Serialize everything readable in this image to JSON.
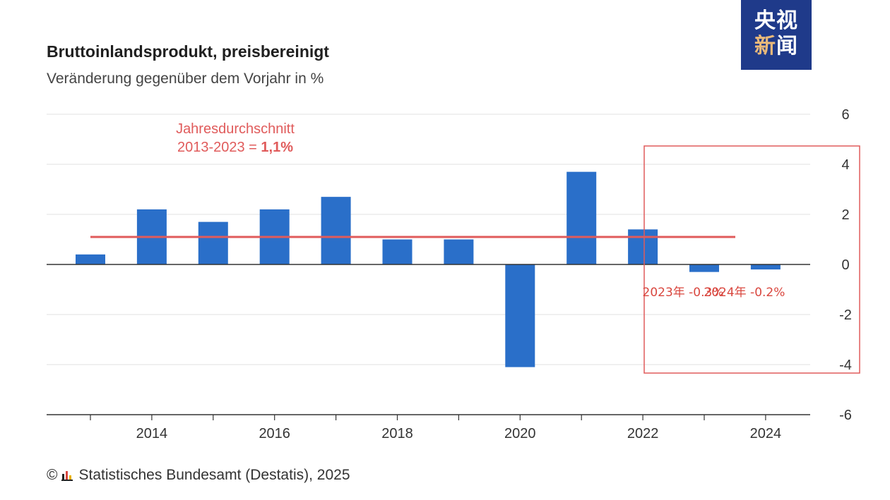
{
  "header": {
    "title": "Bruttoinlandsprodukt, preisbereinigt",
    "subtitle": "Veränderung gegenüber dem Vorjahr in %"
  },
  "logo": {
    "line1": "央视",
    "line2a": "新",
    "line2b": "闻"
  },
  "footer": {
    "copyright_symbol": "©",
    "source": "Statistisches Bundesamt (Destatis), 2025"
  },
  "chart_data": {
    "type": "bar",
    "title": "Bruttoinlandsprodukt, preisbereinigt",
    "subtitle": "Veränderung gegenüber dem Vorjahr in %",
    "categories": [
      "2013",
      "2014",
      "2015",
      "2016",
      "2017",
      "2018",
      "2019",
      "2020",
      "2021",
      "2022",
      "2023",
      "2024"
    ],
    "values": [
      0.4,
      2.2,
      1.7,
      2.2,
      2.7,
      1.0,
      1.0,
      -4.1,
      3.7,
      1.4,
      -0.3,
      -0.2
    ],
    "x_tick_labels": [
      "2014",
      "2016",
      "2018",
      "2020",
      "2022",
      "2024"
    ],
    "ylim": [
      -6,
      6
    ],
    "y_ticks": [
      6,
      4,
      2,
      0,
      -2,
      -4,
      -6
    ],
    "bar_color": "#2a6fc9",
    "average": {
      "value": 1.1,
      "from": "2013",
      "to": "2023",
      "color": "#e05b5b",
      "label_line1": "Jahresdurchschnitt",
      "label_line2_prefix": "2013-2023 = ",
      "label_line2_value": "1,1%"
    },
    "annotations": [
      {
        "text": "2023年 -0.3%",
        "category": "2023",
        "color": "#d9473f"
      },
      {
        "text": "2024年 -0.2%",
        "category": "2024",
        "color": "#d9473f"
      }
    ],
    "highlight_color": "#e05b5b"
  }
}
